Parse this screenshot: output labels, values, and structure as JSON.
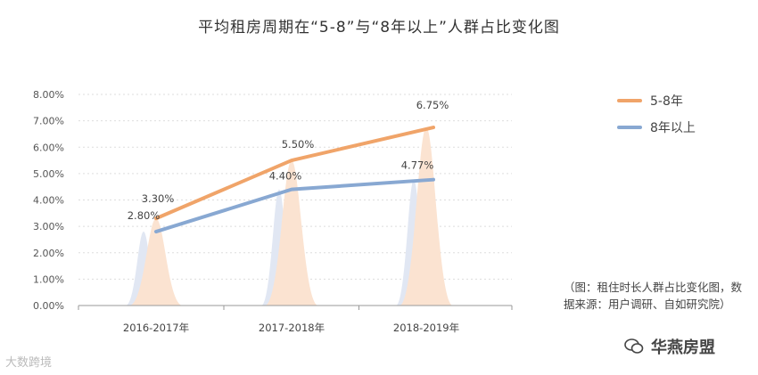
{
  "title": "平均租房周期在“5-8”与“8年以上”人群占比变化图",
  "note": "（图：租住时长人群占比变化图，数据来源：用户调研、自如研究院）",
  "watermark_left": "大数跨境",
  "watermark_right": "华燕房盟",
  "colors": {
    "series1": "#F0A469",
    "series2": "#88A8D2",
    "peak1": "#FBE3D1",
    "peak2": "#E1E7F3",
    "axis": "#999999",
    "grid": "#DDDDDD"
  },
  "chart_data": {
    "type": "line",
    "categories": [
      "2016-2017年",
      "2017-2018年",
      "2018-2019年"
    ],
    "y_ticks": [
      "0.00%",
      "1.00%",
      "2.00%",
      "3.00%",
      "4.00%",
      "5.00%",
      "6.00%",
      "7.00%",
      "8.00%"
    ],
    "ylim": [
      0,
      8
    ],
    "grid": true,
    "legend_position": "right",
    "series": [
      {
        "name": "5-8年",
        "values": [
          3.3,
          5.5,
          6.75
        ],
        "labels": [
          "3.30%",
          "5.50%",
          "6.75%"
        ]
      },
      {
        "name": "8年以上",
        "values": [
          2.8,
          4.4,
          4.77
        ],
        "labels": [
          "2.80%",
          "4.40%",
          "4.77%"
        ]
      }
    ]
  }
}
